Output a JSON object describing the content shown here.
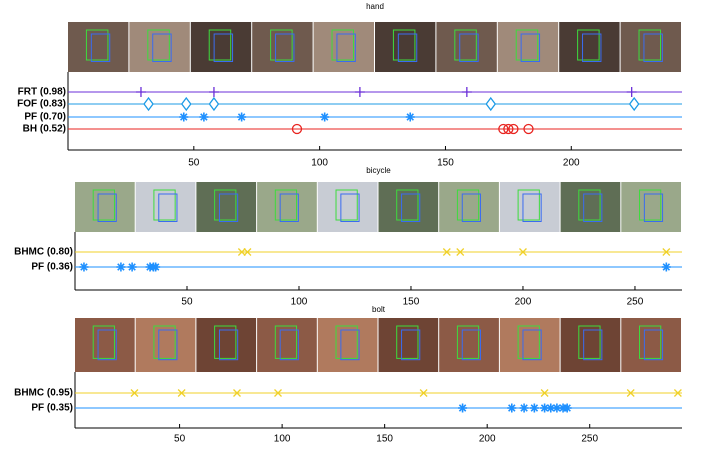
{
  "chart_data": [
    {
      "type": "event",
      "title": "hand",
      "xlim": [
        0,
        244
      ],
      "xticks": [
        50,
        100,
        150,
        200
      ],
      "series": [
        {
          "name": "FRT (0.98)",
          "color": "#6b2fd8",
          "marker": "plus",
          "values": [
            29,
            58,
            116,
            158.5,
            224
          ]
        },
        {
          "name": "FOF (0.83)",
          "color": "#1c9be6",
          "marker": "diamond",
          "values": [
            32,
            47,
            58,
            168,
            225
          ]
        },
        {
          "name": "PF (0.70)",
          "color": "#1e90ff",
          "marker": "star",
          "values": [
            46,
            54,
            69,
            102,
            136
          ]
        },
        {
          "name": "BH (0.52)",
          "color": "#e8231f",
          "marker": "circle",
          "values": [
            91,
            173,
            175,
            177,
            183
          ]
        }
      ]
    },
    {
      "type": "event",
      "title": "bicycle",
      "xlim": [
        0,
        271
      ],
      "xticks": [
        50,
        100,
        150,
        200,
        250
      ],
      "series": [
        {
          "name": "BHMC (0.80)",
          "color": "#f0d12a",
          "marker": "x",
          "values": [
            74.5,
            77,
            166,
            172,
            200,
            264
          ]
        },
        {
          "name": "PF (0.36)",
          "color": "#1e90ff",
          "marker": "star",
          "values": [
            4,
            20.5,
            25.5,
            33.5,
            35,
            36,
            264
          ]
        }
      ]
    },
    {
      "type": "event",
      "title": "bolt",
      "xlim": [
        -1,
        295
      ],
      "xticks": [
        50,
        100,
        150,
        200,
        250
      ],
      "series": [
        {
          "name": "BHMC (0.95)",
          "color": "#f0d12a",
          "marker": "x",
          "values": [
            28,
            51,
            78,
            98,
            169,
            228,
            270,
            293
          ]
        },
        {
          "name": "PF (0.35)",
          "color": "#1e90ff",
          "marker": "star",
          "values": [
            188,
            212,
            218,
            223,
            228,
            231,
            234,
            237,
            239
          ]
        }
      ]
    }
  ]
}
